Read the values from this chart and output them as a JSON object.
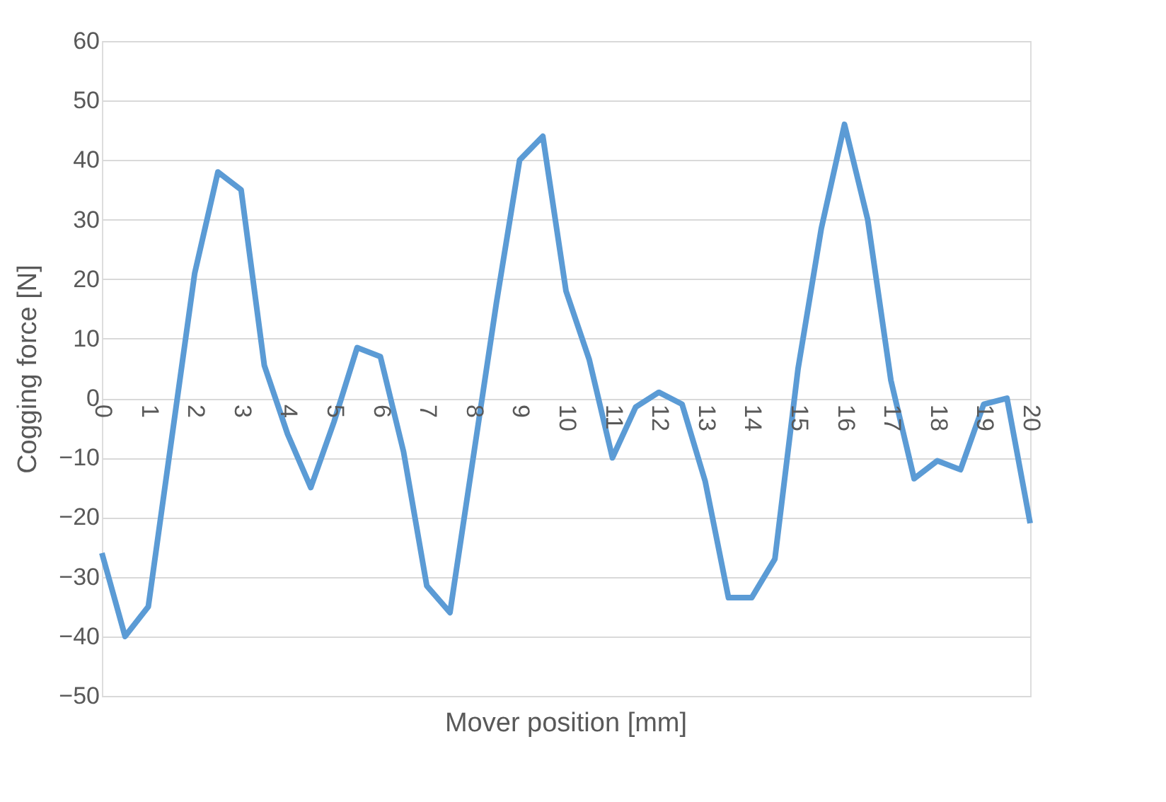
{
  "chart_data": {
    "type": "line",
    "xlabel": "Mover position [mm]",
    "ylabel": "Cogging force [N]",
    "x": [
      0,
      0.5,
      1,
      1.5,
      2,
      2.5,
      3,
      3.5,
      4,
      4.5,
      5,
      5.5,
      6,
      6.5,
      7,
      7.5,
      8,
      8.5,
      9,
      9.5,
      10,
      10.5,
      11,
      11.5,
      12,
      12.5,
      13,
      13.5,
      14,
      14.5,
      15,
      15.5,
      16,
      16.5,
      17,
      17.5,
      18,
      18.5,
      19,
      19.5,
      20
    ],
    "series": [
      {
        "color": "#5b9bd5",
        "values": [
          -26,
          -40,
          -35,
          -7,
          21,
          38,
          35,
          5.5,
          -6,
          -15,
          -4,
          8.5,
          7,
          -9,
          -31.5,
          -36,
          -10,
          16,
          40,
          44,
          18,
          6.5,
          -10,
          -1.5,
          1,
          -1,
          -14,
          -33.5,
          -33.5,
          -27,
          5,
          28.5,
          46,
          30,
          3,
          -13.5,
          -10.5,
          -12,
          -1,
          0,
          -21
        ]
      }
    ],
    "xlim": [
      0,
      20
    ],
    "xticks": [
      0,
      1,
      2,
      3,
      4,
      5,
      6,
      7,
      8,
      9,
      10,
      11,
      12,
      13,
      14,
      15,
      16,
      17,
      18,
      19,
      20
    ],
    "ylim": [
      -50,
      60
    ],
    "yticks": [
      -50,
      -40,
      -30,
      -20,
      -10,
      0,
      10,
      20,
      30,
      40,
      50,
      60
    ],
    "grid": "y",
    "legend": false,
    "marker": "none",
    "line_style": "solid"
  }
}
